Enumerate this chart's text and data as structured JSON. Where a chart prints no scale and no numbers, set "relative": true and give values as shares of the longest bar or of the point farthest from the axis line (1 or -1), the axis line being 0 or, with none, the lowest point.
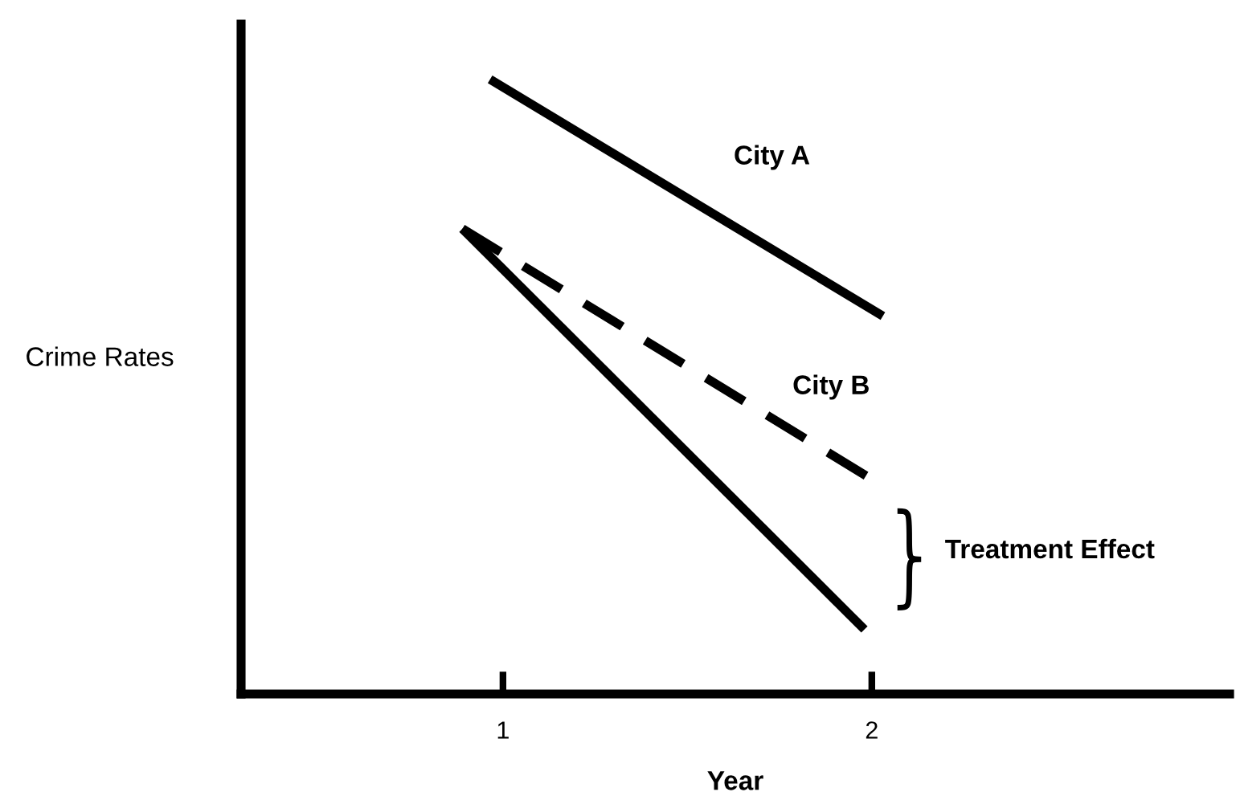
{
  "chart_data": {
    "type": "line",
    "relative": true,
    "xlabel": "Year",
    "ylabel": "Crime Rates",
    "xlim": [
      0.29,
      2.97
    ],
    "xticks": [
      1,
      2
    ],
    "grid": false,
    "marker": "none",
    "series": [
      {
        "color": "#000000",
        "x": [
          0.965,
          2.03
        ],
        "values": [
          1.0,
          0.615
        ],
        "line_style": "solid"
      },
      {
        "color": "#000000",
        "x": [
          0.89,
          1.98
        ],
        "values": [
          0.757,
          0.105
        ],
        "line_style": "solid"
      },
      {
        "color": "#000000",
        "x": [
          0.89,
          1.99
        ],
        "values": [
          0.757,
          0.353
        ],
        "line_style": "dashed"
      }
    ],
    "annotations": [
      "City A",
      "City B",
      "Treatment Effect"
    ]
  }
}
